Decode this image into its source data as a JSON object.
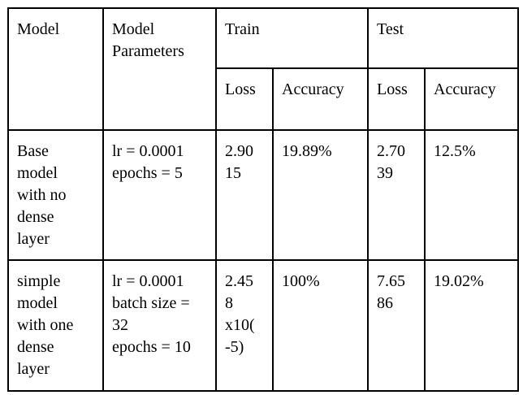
{
  "table": {
    "headers": {
      "model": "Model",
      "model_parameters": "Model\nParameters",
      "train": "Train",
      "test": "Test",
      "train_loss": "Loss",
      "train_accuracy": "Accuracy",
      "test_loss": "Loss",
      "test_accuracy": "Accuracy"
    },
    "rows": [
      {
        "model": "Base\nmodel\nwith no\ndense\nlayer",
        "params": "lr = 0.0001\nepochs = 5",
        "train_loss": "2.90\n15",
        "train_accuracy": "19.89%",
        "test_loss": "2.70\n39",
        "test_accuracy": "12.5%"
      },
      {
        "model": "simple\nmodel\nwith one\ndense\nlayer",
        "params": "lr = 0.0001\nbatch size =\n32\nepochs = 10",
        "train_loss": "2.45\n8\nx10(\n-5)",
        "train_accuracy": "100%",
        "test_loss": "7.65\n86",
        "test_accuracy": "19.02%"
      }
    ]
  }
}
